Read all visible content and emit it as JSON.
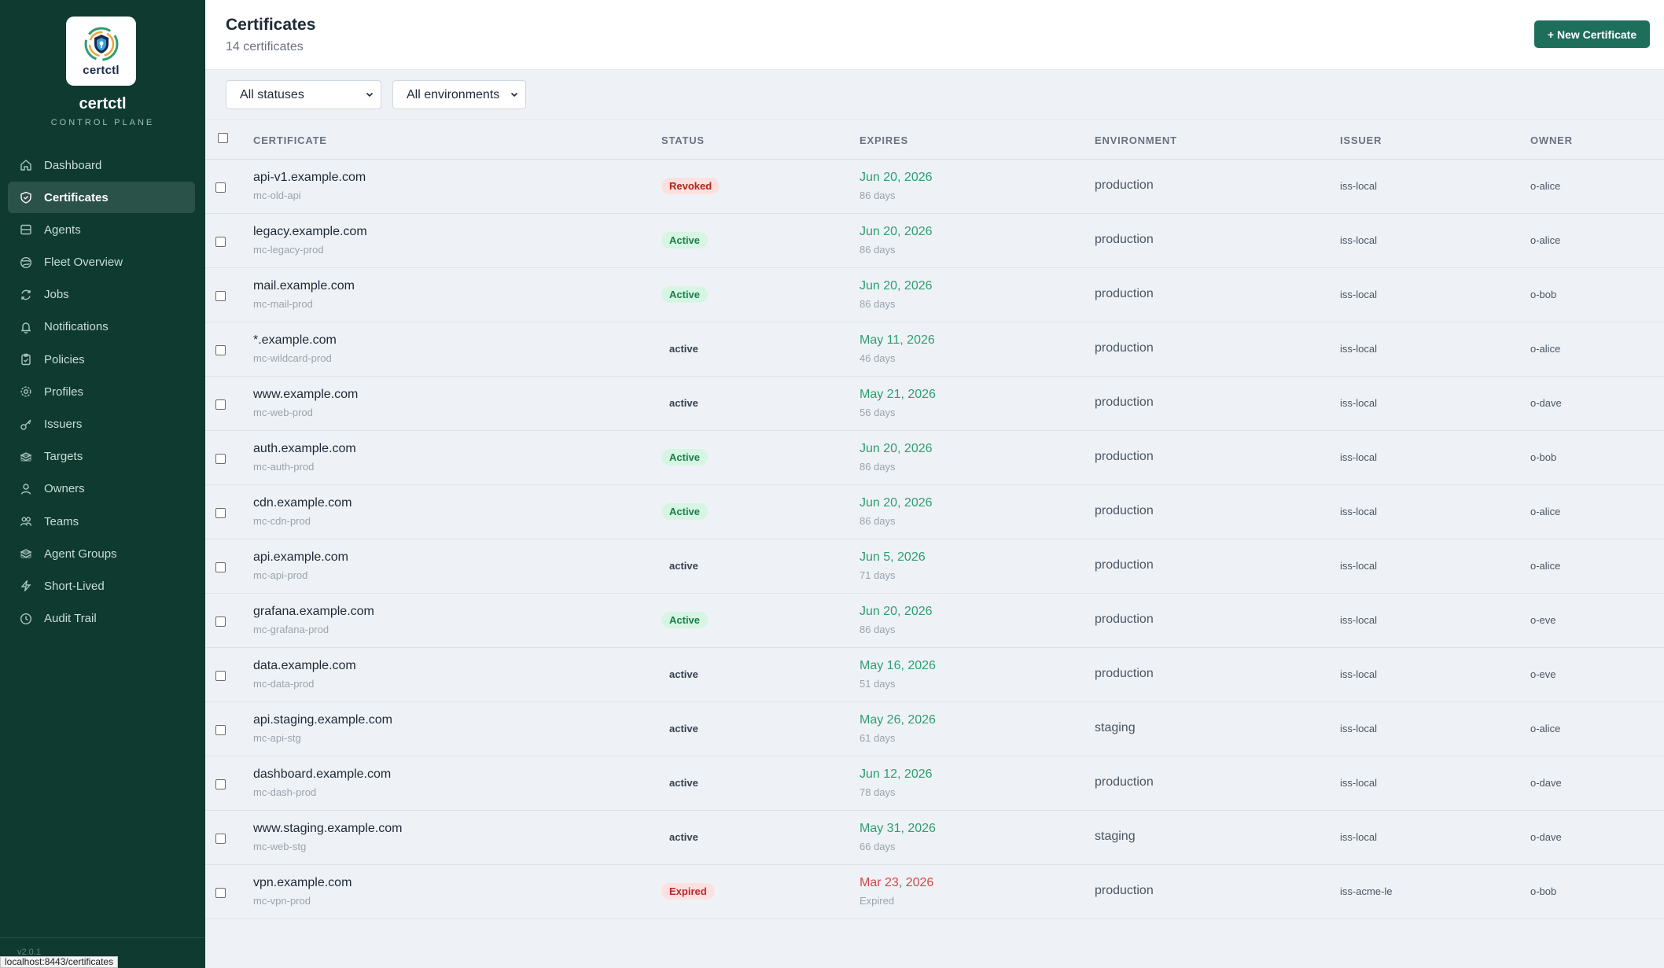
{
  "sidebar": {
    "logo_text": "certctl",
    "app_name": "certctl",
    "app_subtitle": "CONTROL PLANE",
    "version": "v2.0.1",
    "items": [
      {
        "label": "Dashboard",
        "icon": "home-icon"
      },
      {
        "label": "Certificates",
        "icon": "shield-icon",
        "active": true
      },
      {
        "label": "Agents",
        "icon": "server-icon"
      },
      {
        "label": "Fleet Overview",
        "icon": "globe-icon"
      },
      {
        "label": "Jobs",
        "icon": "refresh-icon"
      },
      {
        "label": "Notifications",
        "icon": "bell-icon"
      },
      {
        "label": "Policies",
        "icon": "clipboard-icon"
      },
      {
        "label": "Profiles",
        "icon": "gear-icon"
      },
      {
        "label": "Issuers",
        "icon": "key-icon"
      },
      {
        "label": "Targets",
        "icon": "layers-icon"
      },
      {
        "label": "Owners",
        "icon": "user-icon"
      },
      {
        "label": "Teams",
        "icon": "users-icon"
      },
      {
        "label": "Agent Groups",
        "icon": "layers-icon"
      },
      {
        "label": "Short-Lived",
        "icon": "bolt-icon"
      },
      {
        "label": "Audit Trail",
        "icon": "clock-icon"
      }
    ]
  },
  "browser_status_url": "localhost:8443/certificates",
  "header": {
    "title": "Certificates",
    "count": "14 certificates",
    "new_button": "+ New Certificate"
  },
  "filters": {
    "status": "All statuses",
    "environment": "All environments"
  },
  "table": {
    "columns": [
      "CERTIFICATE",
      "STATUS",
      "EXPIRES",
      "ENVIRONMENT",
      "ISSUER",
      "OWNER"
    ],
    "rows": [
      {
        "name": "api-v1.example.com",
        "id": "mc-old-api",
        "status": "Revoked",
        "style": "revoked",
        "expires": "Jun 20, 2026",
        "days": "86 days",
        "env": "production",
        "issuer": "iss-local",
        "owner": "o-alice"
      },
      {
        "name": "legacy.example.com",
        "id": "mc-legacy-prod",
        "status": "Active",
        "style": "active-pill",
        "expires": "Jun 20, 2026",
        "days": "86 days",
        "env": "production",
        "issuer": "iss-local",
        "owner": "o-alice"
      },
      {
        "name": "mail.example.com",
        "id": "mc-mail-prod",
        "status": "Active",
        "style": "active-pill",
        "expires": "Jun 20, 2026",
        "days": "86 days",
        "env": "production",
        "issuer": "iss-local",
        "owner": "o-bob"
      },
      {
        "name": "*.example.com",
        "id": "mc-wildcard-prod",
        "status": "active",
        "style": "plain",
        "expires": "May 11, 2026",
        "days": "46 days",
        "env": "production",
        "issuer": "iss-local",
        "owner": "o-alice"
      },
      {
        "name": "www.example.com",
        "id": "mc-web-prod",
        "status": "active",
        "style": "plain",
        "expires": "May 21, 2026",
        "days": "56 days",
        "env": "production",
        "issuer": "iss-local",
        "owner": "o-dave"
      },
      {
        "name": "auth.example.com",
        "id": "mc-auth-prod",
        "status": "Active",
        "style": "active-pill",
        "expires": "Jun 20, 2026",
        "days": "86 days",
        "env": "production",
        "issuer": "iss-local",
        "owner": "o-bob"
      },
      {
        "name": "cdn.example.com",
        "id": "mc-cdn-prod",
        "status": "Active",
        "style": "active-pill",
        "expires": "Jun 20, 2026",
        "days": "86 days",
        "env": "production",
        "issuer": "iss-local",
        "owner": "o-alice"
      },
      {
        "name": "api.example.com",
        "id": "mc-api-prod",
        "status": "active",
        "style": "plain",
        "expires": "Jun 5, 2026",
        "days": "71 days",
        "env": "production",
        "issuer": "iss-local",
        "owner": "o-alice"
      },
      {
        "name": "grafana.example.com",
        "id": "mc-grafana-prod",
        "status": "Active",
        "style": "active-pill",
        "expires": "Jun 20, 2026",
        "days": "86 days",
        "env": "production",
        "issuer": "iss-local",
        "owner": "o-eve"
      },
      {
        "name": "data.example.com",
        "id": "mc-data-prod",
        "status": "active",
        "style": "plain",
        "expires": "May 16, 2026",
        "days": "51 days",
        "env": "production",
        "issuer": "iss-local",
        "owner": "o-eve"
      },
      {
        "name": "api.staging.example.com",
        "id": "mc-api-stg",
        "status": "active",
        "style": "plain",
        "expires": "May 26, 2026",
        "days": "61 days",
        "env": "staging",
        "issuer": "iss-local",
        "owner": "o-alice"
      },
      {
        "name": "dashboard.example.com",
        "id": "mc-dash-prod",
        "status": "active",
        "style": "plain",
        "expires": "Jun 12, 2026",
        "days": "78 days",
        "env": "production",
        "issuer": "iss-local",
        "owner": "o-dave"
      },
      {
        "name": "www.staging.example.com",
        "id": "mc-web-stg",
        "status": "active",
        "style": "plain",
        "expires": "May 31, 2026",
        "days": "66 days",
        "env": "staging",
        "issuer": "iss-local",
        "owner": "o-dave"
      },
      {
        "name": "vpn.example.com",
        "id": "mc-vpn-prod",
        "status": "Expired",
        "style": "expired",
        "expires": "Mar 23, 2026",
        "days": "Expired",
        "env": "production",
        "issuer": "iss-acme-le",
        "owner": "o-bob",
        "expired": true
      }
    ]
  }
}
